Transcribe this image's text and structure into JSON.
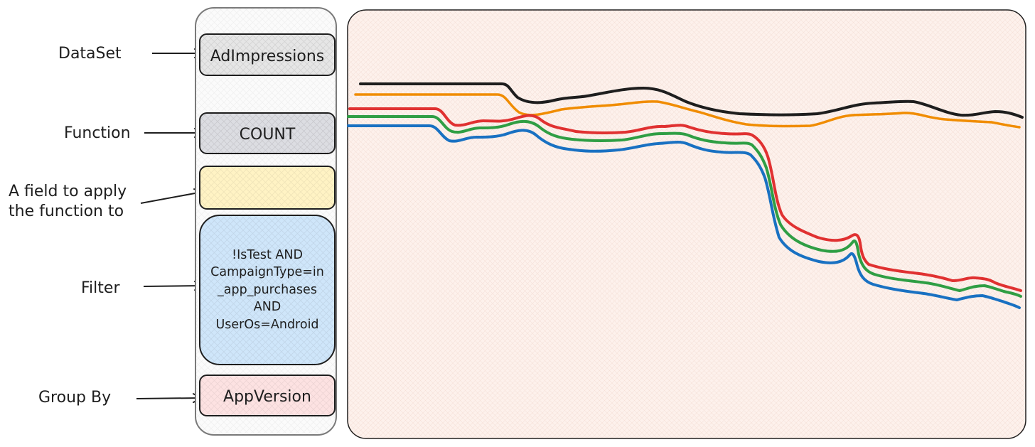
{
  "labels": {
    "dataset": "DataSet",
    "function": "Function",
    "field_line1": "A field to apply",
    "field_line2": "the function to",
    "filter": "Filter",
    "group_by": "Group By"
  },
  "query_panel": {
    "dataset_value": "AdImpressions",
    "function_value": "COUNT",
    "field_value": "",
    "filter_lines": [
      "!IsTest AND",
      "CampaignType=in",
      "_app_purchases",
      "AND",
      "UserOs=Android"
    ],
    "group_by_value": "AppVersion"
  },
  "colors": {
    "ink": "#1e1e1e",
    "dataset_fill": "#e6e6e6",
    "function_fill": "#dcdde2",
    "field_fill": "#fff3c4",
    "filter_fill": "#cfe6fa",
    "group_fill": "#fde2e2",
    "chart_fill": "#fdf1ec",
    "series_black": "#1e1e1e",
    "series_orange": "#f08c00",
    "series_red": "#e03131",
    "series_green": "#2f9e44",
    "series_blue": "#1971c2"
  }
}
